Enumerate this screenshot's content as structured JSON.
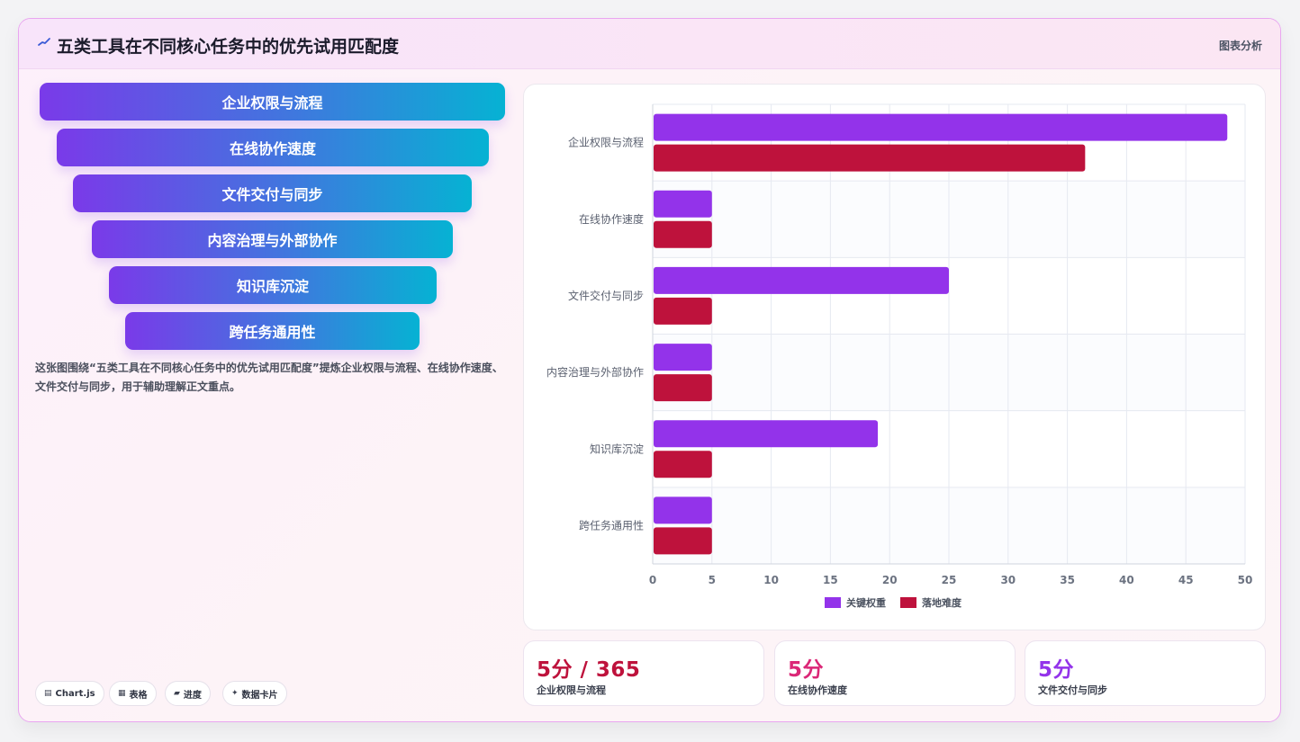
{
  "header": {
    "title": "五类工具在不同核心任务中的优先试用匹配度",
    "tag": "图表分析"
  },
  "funnel": {
    "items": [
      "企业权限与流程",
      "在线协作速度",
      "文件交付与同步",
      "内容治理与外部协作",
      "知识库沉淀",
      "跨任务通用性"
    ]
  },
  "description": "这张图围绕“五类工具在不同核心任务中的优先试用匹配度”提炼企业权限与流程、在线协作速度、文件交付与同步，用于辅助理解正文重点。",
  "chips": [
    {
      "icon": "chart-icon",
      "glyph": "▤",
      "label": "Chart.js"
    },
    {
      "icon": "table-icon",
      "glyph": "▦",
      "label": "表格"
    },
    {
      "icon": "progress-icon",
      "glyph": "▰",
      "label": "进度"
    },
    {
      "icon": "sparkle-icon",
      "glyph": "✦",
      "label": "数据卡片"
    }
  ],
  "chart_data": {
    "type": "bar",
    "orientation": "horizontal",
    "categories": [
      "企业权限与流程",
      "在线协作速度",
      "文件交付与同步",
      "内容治理与外部协作",
      "知识库沉淀",
      "跨任务通用性"
    ],
    "series": [
      {
        "name": "关键权重",
        "color": "#9333ea",
        "values": [
          48.5,
          5,
          25,
          5,
          19,
          5
        ]
      },
      {
        "name": "落地难度",
        "color": "#be123c",
        "values": [
          36.5,
          5,
          5,
          5,
          5,
          5
        ]
      }
    ],
    "xlim": [
      0,
      50
    ],
    "xticks": [
      0,
      5,
      10,
      15,
      20,
      25,
      30,
      35,
      40,
      45,
      50
    ],
    "grid": true,
    "legend": "bottom"
  },
  "stats": [
    {
      "value": "5分 / 365",
      "label": "企业权限与流程",
      "color": "#be123c"
    },
    {
      "value": "5分",
      "label": "在线协作速度",
      "color": "#db2777"
    },
    {
      "value": "5分",
      "label": "文件交付与同步",
      "color": "#9333ea"
    }
  ]
}
